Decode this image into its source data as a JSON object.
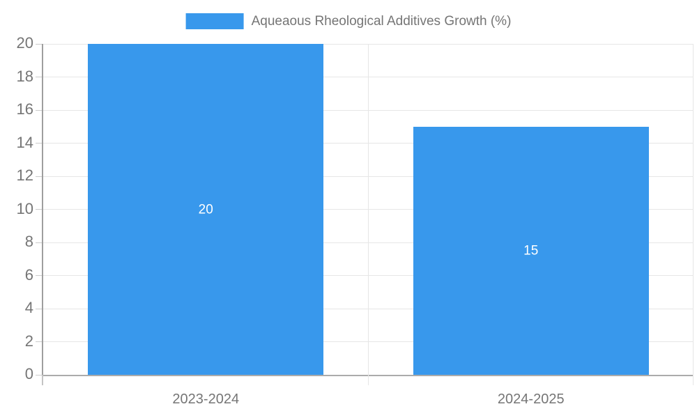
{
  "chart_data": {
    "type": "bar",
    "title": "Aqueaous Rheological Additives Growth (%)",
    "legend_entries": [
      "Aqueaous Rheological Additives Growth (%)"
    ],
    "legend_position": "top-center",
    "categories": [
      "2023-2024",
      "2024-2025"
    ],
    "values": [
      20,
      15
    ],
    "data_labels": [
      "20",
      "15"
    ],
    "xlabel": "",
    "ylabel": "",
    "ylim": [
      0,
      20
    ],
    "ytick_step": 2,
    "yticks": [
      0,
      2,
      4,
      6,
      8,
      10,
      12,
      14,
      16,
      18,
      20
    ],
    "grid": true,
    "colors": {
      "bar": "#3898ec",
      "axis_text": "#757575",
      "data_label_text": "#ffffff",
      "gridline": "#e6e6e6",
      "axis_line": "#9e9e9e",
      "baseline": "#ababab",
      "tick": "#cccccc"
    }
  }
}
